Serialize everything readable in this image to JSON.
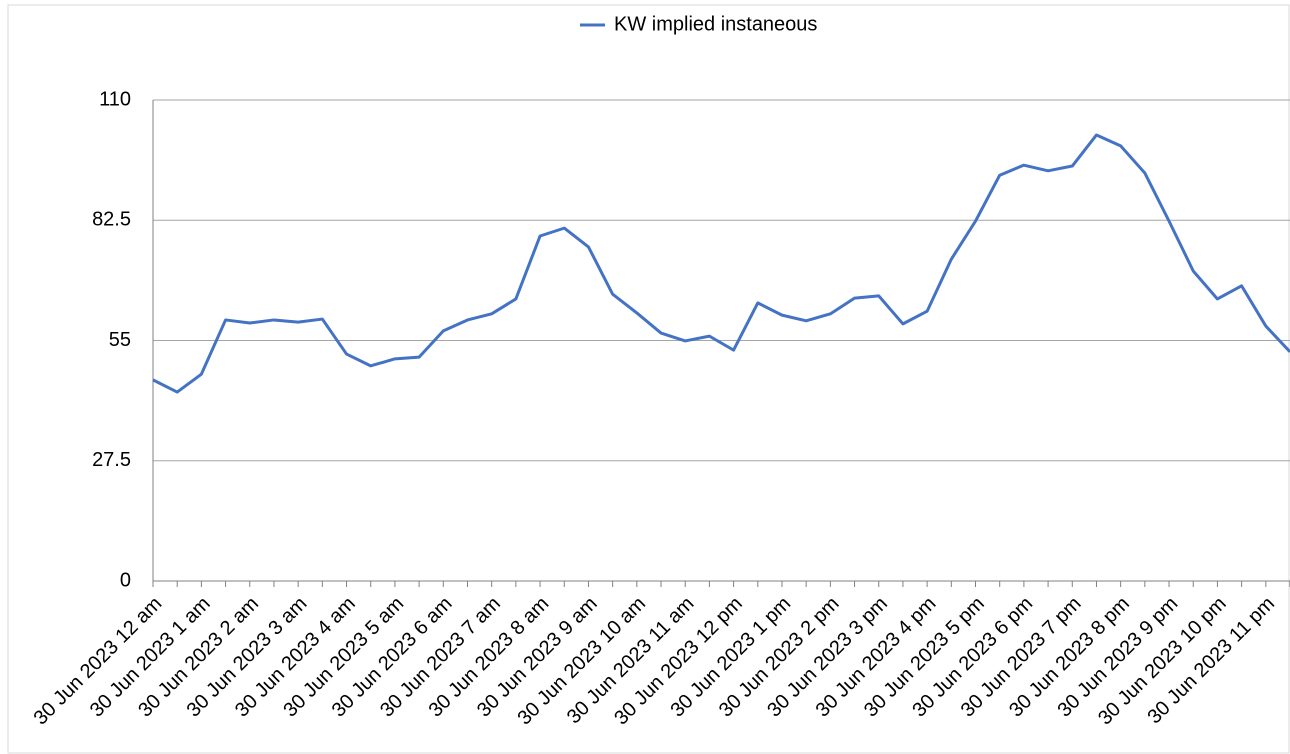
{
  "chart_data": {
    "type": "line",
    "categories": [
      "30 Jun 2023 12 am",
      null,
      "30 Jun 2023 1 am",
      null,
      "30 Jun 2023 2 am",
      null,
      "30 Jun 2023 3 am",
      null,
      "30 Jun 2023 4 am",
      null,
      "30 Jun 2023 5 am",
      null,
      "30 Jun 2023 6 am",
      null,
      "30 Jun 2023 7 am",
      null,
      "30 Jun 2023 8 am",
      null,
      "30 Jun 2023 9 am",
      null,
      "30 Jun 2023 10 am",
      null,
      "30 Jun 2023 11 am",
      null,
      "30 Jun 2023 12 pm",
      null,
      "30 Jun 2023 1 pm",
      null,
      "30 Jun 2023 2 pm",
      null,
      "30 Jun 2023 3 pm",
      null,
      "30 Jun 2023 4 pm",
      null,
      "30 Jun 2023 5 pm",
      null,
      "30 Jun 2023 6 pm",
      null,
      "30 Jun 2023 7 pm",
      null,
      "30 Jun 2023 8 pm",
      null,
      "30 Jun 2023 9 pm",
      null,
      "30 Jun 2023 10 pm",
      null,
      "30 Jun 2023 11 pm",
      null
    ],
    "series": [
      {
        "name": "KW implied instaneous",
        "color": "#4472c4",
        "values": [
          46.0,
          43.2,
          47.3,
          59.7,
          59.0,
          59.7,
          59.2,
          59.9,
          51.9,
          49.2,
          50.8,
          51.2,
          57.2,
          59.7,
          61.1,
          64.5,
          78.9,
          80.7,
          76.4,
          65.6,
          61.3,
          56.7,
          54.9,
          56.0,
          52.8,
          63.6,
          60.8,
          59.5,
          61.1,
          64.7,
          65.2,
          58.8,
          61.7,
          73.6,
          82.3,
          92.8,
          95.1,
          93.8,
          94.9,
          102.0,
          99.5,
          93.3,
          82.3,
          70.9,
          64.5,
          67.5,
          58.3,
          52.4
        ]
      }
    ],
    "ylim": [
      0,
      110
    ],
    "yticks": [
      0,
      27.5,
      55,
      82.5,
      110
    ],
    "grid": true,
    "legend": "top"
  }
}
